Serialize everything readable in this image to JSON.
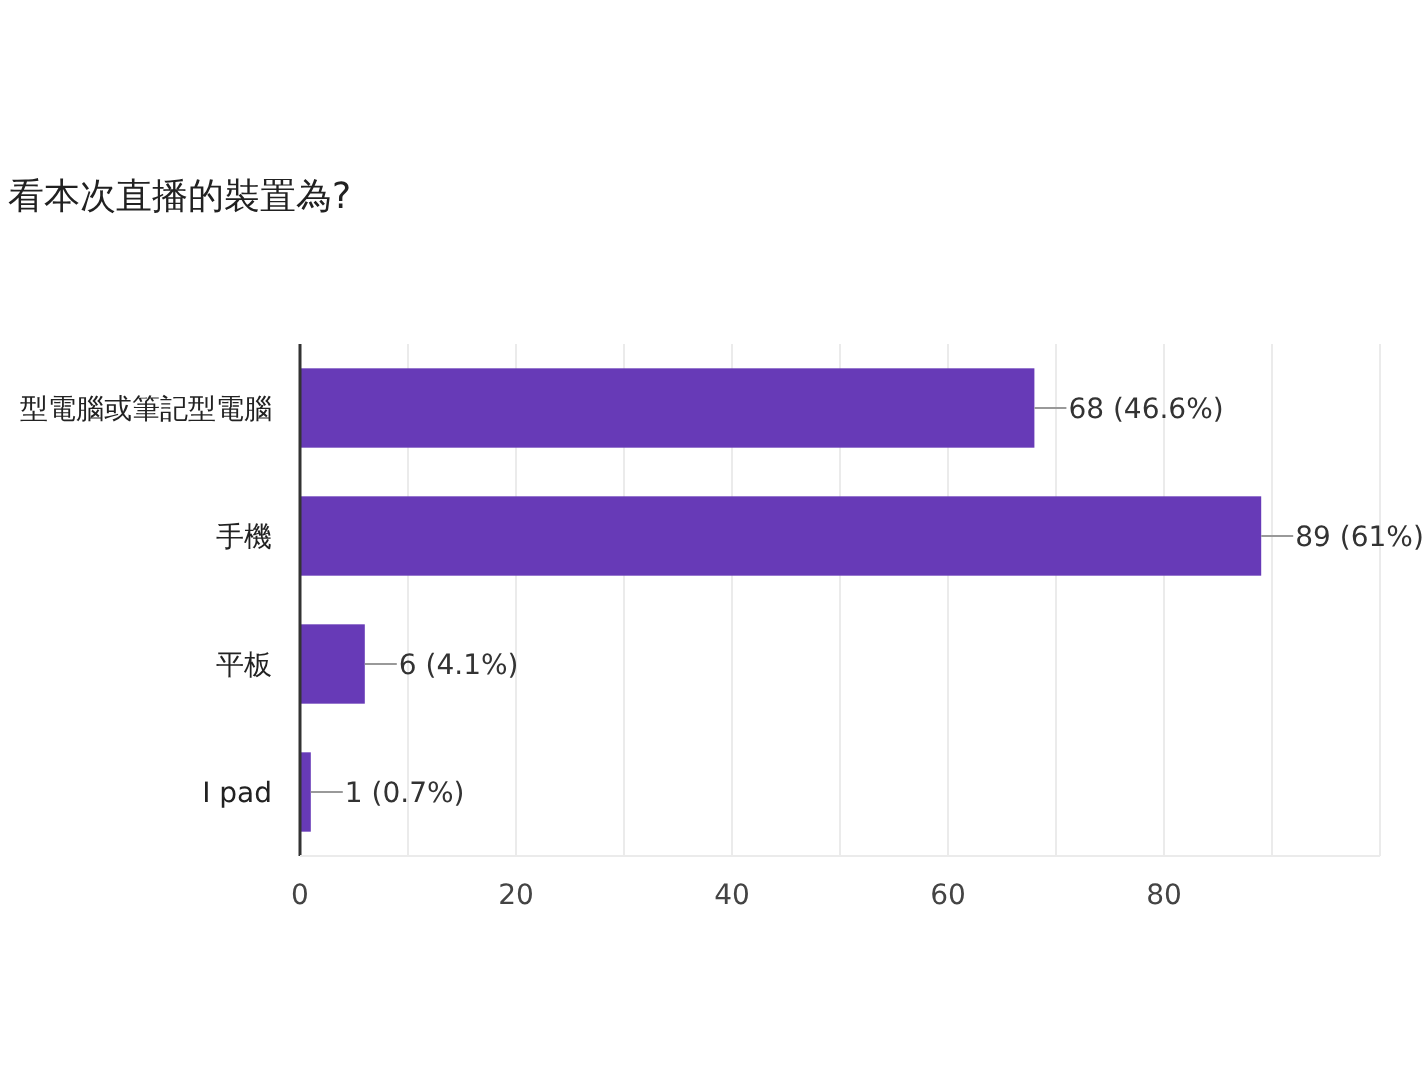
{
  "chart_data": {
    "type": "bar",
    "orientation": "horizontal",
    "title": "看本次直播的裝置為?",
    "categories": [
      "型電腦或筆記型電腦",
      "手機",
      "平板",
      "I pad"
    ],
    "values": [
      68,
      89,
      6,
      1
    ],
    "color": "#673ab7",
    "value_labels": [
      "68 (46.6%)",
      "89 (61%)",
      "6 (4.1%)",
      "1 (0.7%)"
    ],
    "xlim": [
      0,
      100
    ],
    "xticks": [
      0,
      {
        "value": 10,
        "label": null
      },
      20,
      {
        "value": 30,
        "label": null
      },
      40,
      {
        "value": 50,
        "label": null
      },
      60,
      {
        "value": 70,
        "label": null
      },
      80,
      {
        "value": 90,
        "label": null
      },
      {
        "value": 100,
        "label": null
      }
    ],
    "grid": "x"
  }
}
